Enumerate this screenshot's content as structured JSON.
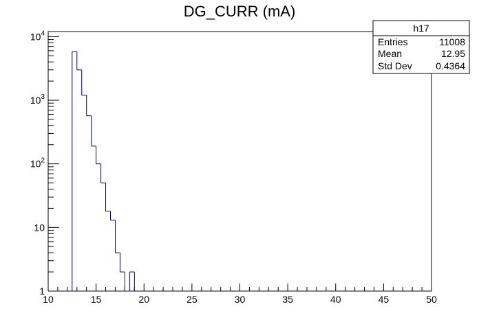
{
  "window": {
    "background": "#ffffff"
  },
  "chart_data": {
    "type": "bar",
    "title": "DG_CURR (mA)",
    "xlabel": "",
    "ylabel": "",
    "x_scale": "linear",
    "y_scale": "log",
    "xlim": [
      10,
      50
    ],
    "ylim": [
      1,
      12000
    ],
    "grid": false,
    "line_color": "#000080",
    "x_ticks": [
      {
        "value": 10,
        "label": "10"
      },
      {
        "value": 15,
        "label": "15"
      },
      {
        "value": 20,
        "label": "20"
      },
      {
        "value": 25,
        "label": "25"
      },
      {
        "value": 30,
        "label": "30"
      },
      {
        "value": 35,
        "label": "35"
      },
      {
        "value": 40,
        "label": "40"
      },
      {
        "value": 45,
        "label": "45"
      },
      {
        "value": 50,
        "label": "50"
      }
    ],
    "y_ticks": [
      {
        "value": 1,
        "base": "1",
        "exp": ""
      },
      {
        "value": 10,
        "base": "10",
        "exp": ""
      },
      {
        "value": 100,
        "base": "10",
        "exp": "2"
      },
      {
        "value": 1000,
        "base": "10",
        "exp": "3"
      },
      {
        "value": 10000,
        "base": "10",
        "exp": "4"
      }
    ],
    "bins": [
      {
        "low": 12.5,
        "high": 13.0,
        "count": 5800
      },
      {
        "low": 13.0,
        "high": 13.5,
        "count": 3000
      },
      {
        "low": 13.5,
        "high": 14.0,
        "count": 1200
      },
      {
        "low": 14.0,
        "high": 14.5,
        "count": 570
      },
      {
        "low": 14.5,
        "high": 15.0,
        "count": 190
      },
      {
        "low": 15.0,
        "high": 15.5,
        "count": 100
      },
      {
        "low": 15.5,
        "high": 16.0,
        "count": 50
      },
      {
        "low": 16.0,
        "high": 16.5,
        "count": 18
      },
      {
        "low": 16.5,
        "high": 17.0,
        "count": 13
      },
      {
        "low": 17.0,
        "high": 17.5,
        "count": 4
      },
      {
        "low": 17.5,
        "high": 18.0,
        "count": 2
      },
      {
        "low": 18.0,
        "high": 18.5,
        "count": 0
      },
      {
        "low": 18.5,
        "high": 19.0,
        "count": 2
      }
    ]
  },
  "stats_box": {
    "name": "h17",
    "rows": [
      {
        "label": "Entries",
        "value": "11008"
      },
      {
        "label": "Mean",
        "value": "12.95"
      },
      {
        "label": "Std Dev",
        "value": "0.4364"
      }
    ]
  }
}
